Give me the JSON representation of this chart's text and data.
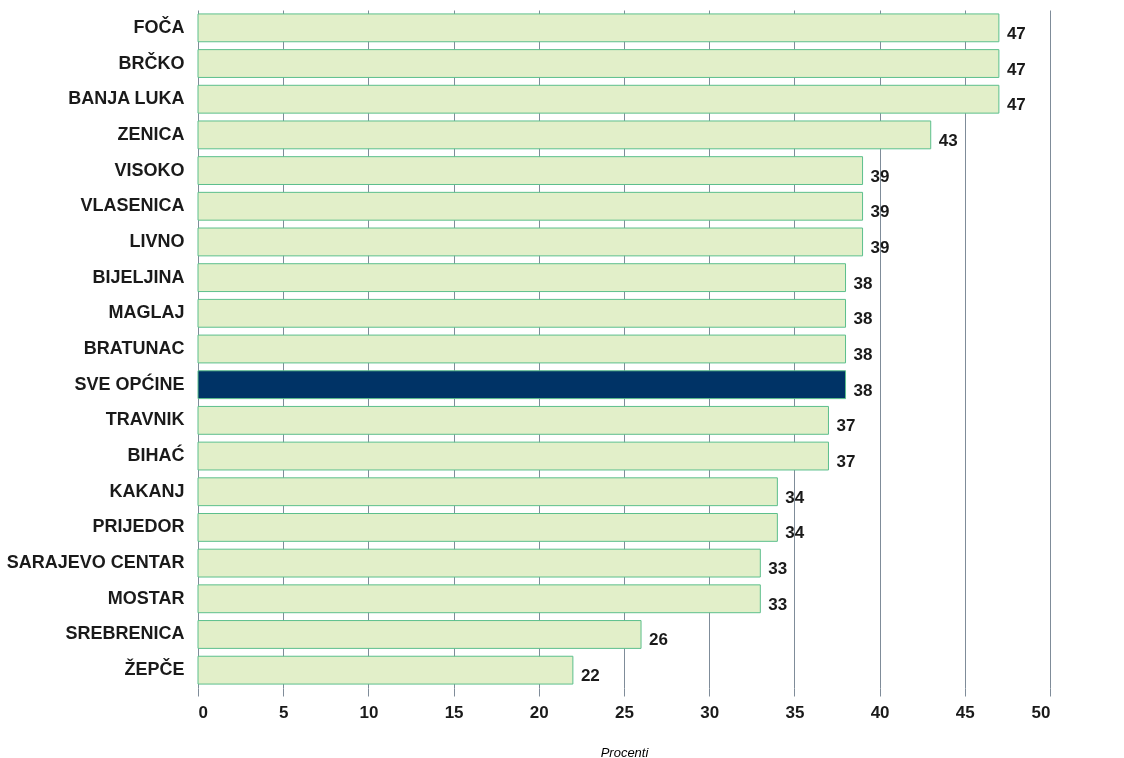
{
  "chart_data": {
    "type": "bar",
    "orientation": "horizontal",
    "xlabel": "Procenti",
    "categories": [
      "FOČA",
      "BRČKO",
      "BANJA LUKA",
      "ZENICA",
      "VISOKO",
      "VLASENICA",
      "LIVNO",
      "BIJELJINA",
      "MAGLAJ",
      "BRATUNAC",
      "SVE OPĆINE",
      "TRAVNIK",
      "BIHAĆ",
      "KAKANJ",
      "PRIJEDOR",
      "SARAJEVO CENTAR",
      "MOSTAR",
      "SREBRENICA",
      "ŽEPČE"
    ],
    "values": [
      47,
      47,
      47,
      43,
      39,
      39,
      39,
      38,
      38,
      38,
      38,
      37,
      37,
      34,
      34,
      33,
      33,
      26,
      22
    ],
    "colors": [
      "#e2efc9",
      "#e2efc9",
      "#e2efc9",
      "#e2efc9",
      "#e2efc9",
      "#e2efc9",
      "#e2efc9",
      "#e2efc9",
      "#e2efc9",
      "#e2efc9",
      "#003366",
      "#e2efc9",
      "#e2efc9",
      "#e2efc9",
      "#e2efc9",
      "#e2efc9",
      "#e2efc9",
      "#e2efc9",
      "#e2efc9"
    ],
    "xlim": [
      0,
      50
    ],
    "xticks": [
      0,
      5,
      10,
      15,
      20,
      25,
      30,
      35,
      40,
      45,
      50
    ],
    "grid": "x",
    "data_labels": true
  }
}
